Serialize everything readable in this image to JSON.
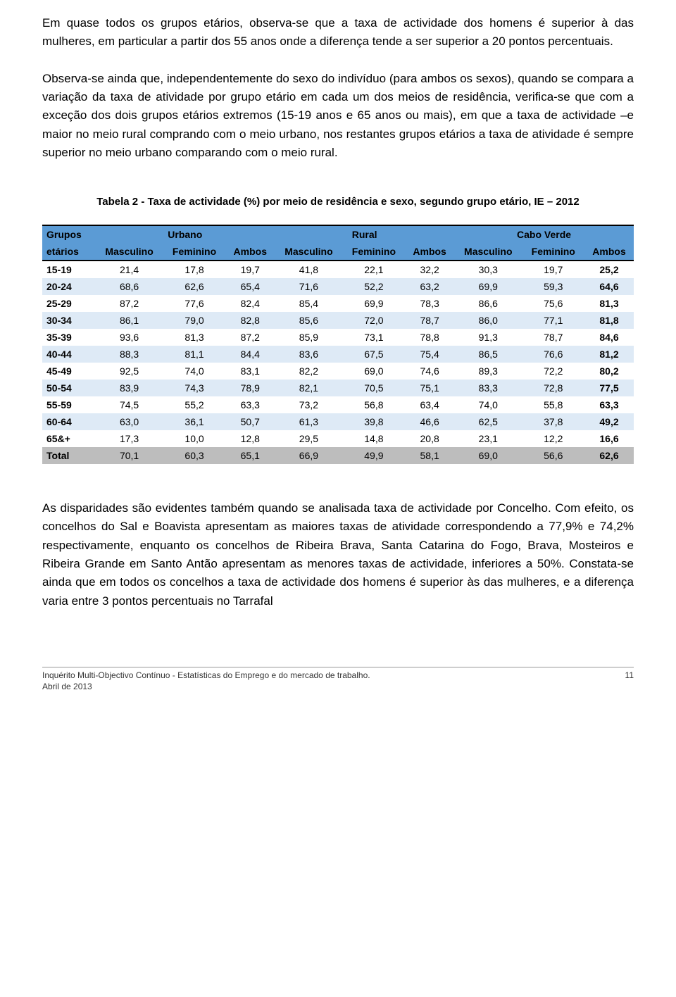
{
  "paragraphs": {
    "p1": "Em quase todos os grupos etários, observa-se que a taxa de actividade dos homens é superior à das mulheres, em particular a partir dos 55 anos onde a diferença tende a ser superior a 20 pontos percentuais.",
    "p2": "Observa-se ainda que, independentemente do sexo do indivíduo (para ambos os sexos), quando se compara a variação da taxa de atividade por grupo etário em cada um dos meios de residência, verifica-se que com a exceção dos dois grupos etários extremos (15-19 anos e 65 anos ou mais), em que a taxa de actividade –e maior no meio rural comprando com o meio urbano, nos restantes grupos etários a taxa de atividade é sempre superior  no meio urbano comparando com o meio rural.",
    "p3": "As disparidades são evidentes também quando se analisada taxa de actividade por Concelho. Com efeito, os concelhos do Sal e Boavista apresentam as maiores taxas de atividade correspondendo a 77,9% e 74,2% respectivamente, enquanto os concelhos de Ribeira Brava, Santa Catarina do Fogo, Brava, Mosteiros e Ribeira Grande em Santo Antão apresentam as menores taxas de actividade, inferiores a 50%. Constata-se ainda que em todos os concelhos a taxa de actividade dos homens é superior às das mulheres, e a diferença varia entre 3 pontos percentuais no Tarrafal"
  },
  "table": {
    "caption": "Tabela 2 - Taxa de actividade (%) por meio de residência e sexo, segundo grupo etário, IE – 2012",
    "corner_top": "Grupos",
    "corner_bottom": "etários",
    "groups": [
      "Urbano",
      "Rural",
      "Cabo Verde"
    ],
    "sub": [
      "Masculino",
      "Feminino",
      "Ambos",
      "Masculino",
      "Feminino",
      "Ambos",
      "Masculino",
      "Feminino",
      "Ambos"
    ],
    "header_bg": "#5b9bd5",
    "row_alt_bg": "#deeaf6",
    "total_bg": "#bdbdbd",
    "rows": [
      {
        "label": "15-19",
        "v": [
          "21,4",
          "17,8",
          "19,7",
          "41,8",
          "22,1",
          "32,2",
          "30,3",
          "19,7",
          "25,2"
        ],
        "cls": ""
      },
      {
        "label": "20-24",
        "v": [
          "68,6",
          "62,6",
          "65,4",
          "71,6",
          "52,2",
          "63,2",
          "69,9",
          "59,3",
          "64,6"
        ],
        "cls": "even"
      },
      {
        "label": "25-29",
        "v": [
          "87,2",
          "77,6",
          "82,4",
          "85,4",
          "69,9",
          "78,3",
          "86,6",
          "75,6",
          "81,3"
        ],
        "cls": ""
      },
      {
        "label": "30-34",
        "v": [
          "86,1",
          "79,0",
          "82,8",
          "85,6",
          "72,0",
          "78,7",
          "86,0",
          "77,1",
          "81,8"
        ],
        "cls": "even"
      },
      {
        "label": "35-39",
        "v": [
          "93,6",
          "81,3",
          "87,2",
          "85,9",
          "73,1",
          "78,8",
          "91,3",
          "78,7",
          "84,6"
        ],
        "cls": ""
      },
      {
        "label": "40-44",
        "v": [
          "88,3",
          "81,1",
          "84,4",
          "83,6",
          "67,5",
          "75,4",
          "86,5",
          "76,6",
          "81,2"
        ],
        "cls": "even"
      },
      {
        "label": "45-49",
        "v": [
          "92,5",
          "74,0",
          "83,1",
          "82,2",
          "69,0",
          "74,6",
          "89,3",
          "72,2",
          "80,2"
        ],
        "cls": ""
      },
      {
        "label": "50-54",
        "v": [
          "83,9",
          "74,3",
          "78,9",
          "82,1",
          "70,5",
          "75,1",
          "83,3",
          "72,8",
          "77,5"
        ],
        "cls": "even"
      },
      {
        "label": "55-59",
        "v": [
          "74,5",
          "55,2",
          "63,3",
          "73,2",
          "56,8",
          "63,4",
          "74,0",
          "55,8",
          "63,3"
        ],
        "cls": ""
      },
      {
        "label": "60-64",
        "v": [
          "63,0",
          "36,1",
          "50,7",
          "61,3",
          "39,8",
          "46,6",
          "62,5",
          "37,8",
          "49,2"
        ],
        "cls": "even"
      },
      {
        "label": "65&+",
        "v": [
          "17,3",
          "10,0",
          "12,8",
          "29,5",
          "14,8",
          "20,8",
          "23,1",
          "12,2",
          "16,6"
        ],
        "cls": ""
      },
      {
        "label": "Total",
        "v": [
          "70,1",
          "60,3",
          "65,1",
          "66,9",
          "49,9",
          "58,1",
          "69,0",
          "56,6",
          "62,6"
        ],
        "cls": "total"
      }
    ]
  },
  "footer": {
    "line1": "Inquérito Multi-Objectivo Contínuo - Estatísticas do Emprego e do mercado de trabalho.",
    "line2": "Abril de 2013",
    "page": "11"
  }
}
